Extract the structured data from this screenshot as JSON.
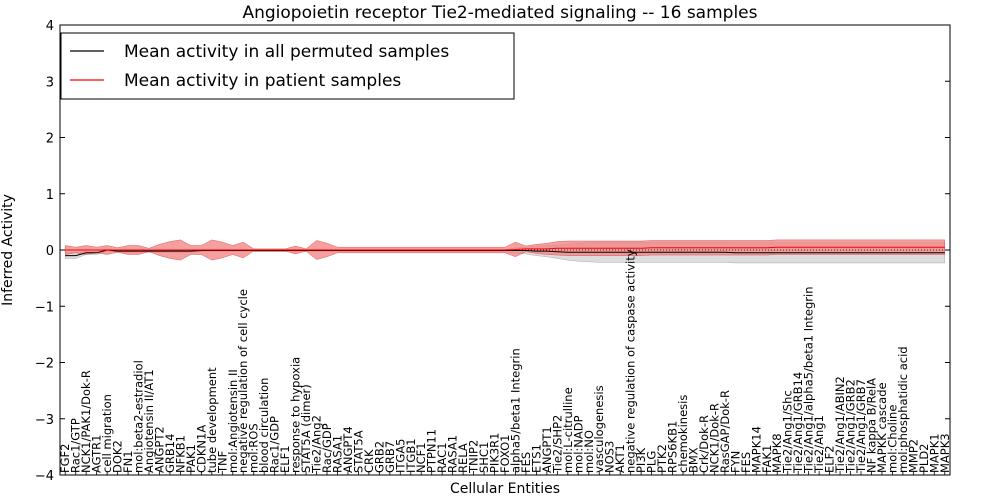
{
  "chart_data": {
    "type": "line",
    "title": "Angiopoietin receptor Tie2-mediated signaling -- 16 samples",
    "xlabel": "Cellular Entities",
    "ylabel": "Inferred Activity",
    "ylim": [
      -4,
      4
    ],
    "yticks": [
      -4,
      -3,
      -2,
      -1,
      0,
      1,
      2,
      3,
      4
    ],
    "legend_position": "top-left",
    "colors": {
      "permuted_line": "#000000",
      "permuted_band": "#bbbbbb",
      "patient_line": "#ff0000",
      "patient_band": "#f08080"
    },
    "categories": [
      "FGF2",
      "Rac1/GTP",
      "NCK1/PAK1/Dok-R",
      "AGTR1",
      "cell migration",
      "DOK2",
      "FN1",
      "mol:beta2-estradiol",
      "Angiotensin II/AT1",
      "ANGPT2",
      "GRB14",
      "NFKB1",
      "PAK1",
      "CDKN1A",
      "tube development",
      "TNF",
      "mol:Angiotensin II",
      "negative regulation of cell cycle",
      "mol:ROS",
      "blood circulation",
      "Rac1/GDP",
      "ELF1",
      "response to hypoxia",
      "STAT5A (dimer)",
      "Tie2/Ang2",
      "Rac/GDP",
      "RASA1",
      "ANGPT4",
      "STAT5A",
      "CRK",
      "GRB2",
      "GRB7",
      "ITGA5",
      "ITGB1",
      "NCF1",
      "PTPN11",
      "RAC1",
      "RASA1",
      "RELA",
      "TNIP2",
      "SHC1",
      "PIK3R1",
      "FOXO1",
      "alpha5/beta1 Integrin",
      "FES",
      "ETS1",
      "ANGPT1",
      "Tie2/SHP2",
      "mol:L-citrulline",
      "mol:NADP",
      "mol:NO",
      "vasculogenesis",
      "NOS3",
      "AKT1",
      "negative regulation of caspase activity",
      "PI3K",
      "PLG",
      "PTK2",
      "RPS6KB1",
      "chemokinesis",
      "BMX",
      "Crk/Dok-R",
      "NCK1/Dok-R",
      "RasGAP/Dok-R",
      "FYN",
      "FES",
      "MAPK14",
      "FAK1",
      "MAPK8",
      "Tie2/Ang1/Shc",
      "Tie2/Ang1/GRB14",
      "Tie2/Ang1/alpha5/beta1 Integrin",
      "Tie2/Ang1",
      "ELF2",
      "Tie2/Ang1/ABIN2",
      "Tie2/Ang1/GRB2",
      "Tie2/Ang1/GRB7",
      "NF kappa B/RelA",
      "MAPKK cascade",
      "mol:Choline",
      "mol:phosphatidic acid",
      "MMP2",
      "PLD2",
      "MAPK1",
      "MAPK3"
    ],
    "series": [
      {
        "name": "Mean activity in all permuted samples",
        "values": [
          -0.1,
          -0.1,
          -0.05,
          -0.05,
          0,
          -0.02,
          -0.02,
          -0.02,
          -0.02,
          -0.02,
          -0.02,
          -0.02,
          -0.02,
          -0.01,
          -0.01,
          -0.01,
          -0.01,
          -0.01,
          -0.01,
          -0.01,
          -0.01,
          -0.01,
          -0.01,
          -0.01,
          -0.01,
          -0.01,
          -0.01,
          -0.01,
          -0.01,
          -0.01,
          -0.01,
          -0.01,
          -0.01,
          -0.01,
          -0.01,
          -0.01,
          -0.01,
          -0.01,
          -0.01,
          -0.01,
          -0.01,
          -0.01,
          -0.01,
          -0.01,
          -0.01,
          -0.02,
          -0.02,
          -0.03,
          -0.04,
          -0.04,
          -0.04,
          -0.04,
          -0.04,
          -0.04,
          -0.04,
          -0.04,
          -0.04,
          -0.04,
          -0.04,
          -0.04,
          -0.04,
          -0.04,
          -0.04,
          -0.04,
          -0.05,
          -0.05,
          -0.05,
          -0.05,
          -0.05,
          -0.05,
          -0.05,
          -0.05,
          -0.05,
          -0.05,
          -0.05,
          -0.05,
          -0.05,
          -0.05,
          -0.05,
          -0.05,
          -0.05,
          -0.05,
          -0.05,
          -0.05,
          -0.05
        ],
        "std": [
          0.05,
          0.05,
          0.03,
          0.03,
          0.02,
          0.02,
          0.02,
          0.02,
          0.02,
          0.02,
          0.02,
          0.02,
          0.02,
          0.02,
          0.02,
          0.02,
          0.02,
          0.02,
          0.02,
          0.02,
          0.02,
          0.02,
          0.02,
          0.02,
          0.02,
          0.02,
          0.02,
          0.02,
          0.02,
          0.02,
          0.02,
          0.02,
          0.02,
          0.02,
          0.02,
          0.02,
          0.02,
          0.02,
          0.02,
          0.02,
          0.02,
          0.02,
          0.02,
          0.05,
          0.06,
          0.08,
          0.1,
          0.12,
          0.14,
          0.16,
          0.17,
          0.18,
          0.18,
          0.18,
          0.18,
          0.18,
          0.18,
          0.18,
          0.18,
          0.18,
          0.18,
          0.18,
          0.18,
          0.18,
          0.18,
          0.18,
          0.18,
          0.18,
          0.18,
          0.18,
          0.18,
          0.18,
          0.18,
          0.18,
          0.18,
          0.18,
          0.18,
          0.18,
          0.18,
          0.18,
          0.18,
          0.18,
          0.18,
          0.18,
          0.18
        ]
      },
      {
        "name": "Mean activity in patient samples",
        "values": [
          0,
          0,
          0,
          0,
          0,
          0,
          0,
          0,
          0,
          0,
          0,
          0,
          0,
          0,
          0,
          0,
          0,
          0,
          0,
          0,
          0,
          0,
          0,
          0,
          0,
          0,
          0,
          0,
          0,
          0,
          0,
          0,
          0,
          0,
          0,
          0,
          0,
          0,
          0,
          0,
          0,
          0,
          0,
          0.01,
          0.02,
          0.02,
          0.02,
          0.03,
          0.03,
          0.03,
          0.03,
          0.03,
          0.03,
          0.03,
          0.03,
          0.03,
          0.04,
          0.04,
          0.04,
          0.04,
          0.04,
          0.04,
          0.04,
          0.04,
          0.04,
          0.04,
          0.04,
          0.04,
          0.05,
          0.05,
          0.05,
          0.05,
          0.05,
          0.05,
          0.05,
          0.05,
          0.05,
          0.05,
          0.05,
          0.05,
          0.05,
          0.05,
          0.05,
          0.05,
          0.05
        ],
        "std": [
          0.08,
          0.05,
          0.08,
          0.05,
          0.08,
          0.04,
          0.08,
          0.08,
          0.03,
          0.1,
          0.15,
          0.18,
          0.08,
          0.08,
          0.18,
          0.14,
          0.08,
          0.14,
          0.02,
          0.02,
          0.02,
          0.02,
          0.07,
          0.02,
          0.17,
          0.12,
          0.05,
          0.05,
          0.05,
          0.05,
          0.05,
          0.05,
          0.05,
          0.05,
          0.05,
          0.05,
          0.05,
          0.05,
          0.05,
          0.05,
          0.05,
          0.05,
          0.05,
          0.13,
          0.05,
          0.08,
          0.1,
          0.12,
          0.13,
          0.13,
          0.13,
          0.13,
          0.13,
          0.13,
          0.13,
          0.13,
          0.13,
          0.13,
          0.13,
          0.13,
          0.13,
          0.13,
          0.13,
          0.13,
          0.13,
          0.13,
          0.13,
          0.13,
          0.13,
          0.13,
          0.13,
          0.13,
          0.13,
          0.13,
          0.13,
          0.13,
          0.13,
          0.13,
          0.13,
          0.13,
          0.13,
          0.13,
          0.13,
          0.13,
          0.13
        ]
      }
    ]
  }
}
